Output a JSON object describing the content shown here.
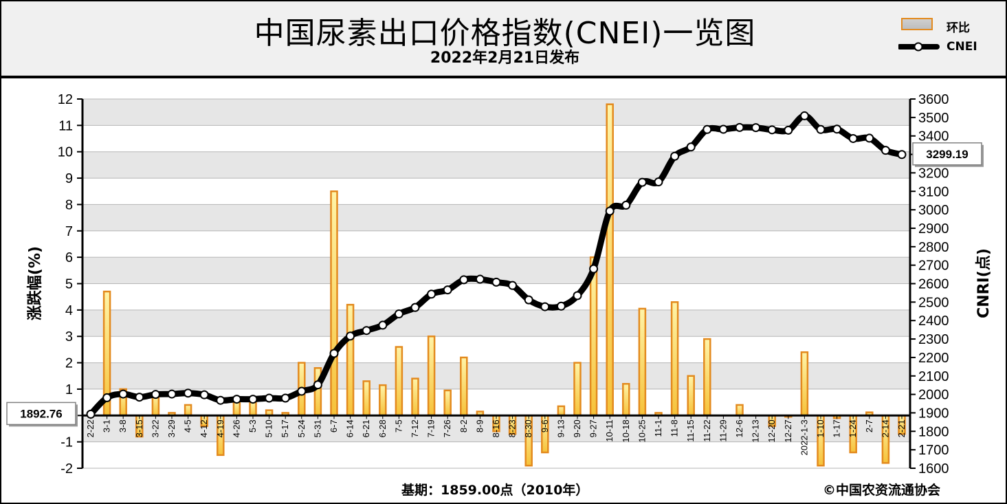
{
  "header": {
    "title": "中国尿素出口价格指数(CNEI)一览图",
    "subtitle": "2022年2月21日发布"
  },
  "legend": {
    "bar_label": "环比",
    "line_label": "CNEI"
  },
  "footer": {
    "base_period": "基期：1859.00点（2010年）",
    "copyright": "©中国农资流通协会"
  },
  "colors": {
    "bar_border": "#e38a1e",
    "bar_fill_top": "#fff4a8",
    "bar_fill_bottom": "#f6c23a",
    "line": "#000000",
    "marker_fill": "#ffffff",
    "grid_band": "#e6e6e6"
  },
  "chart_data": {
    "type": "bar+line",
    "title": "中国尿素出口价格指数(CNEI)一览图",
    "ylabel_left": "涨跌幅(%)",
    "ylabel_right": "CNRI(点)",
    "ylim_left": [
      -2,
      12
    ],
    "ylim_right": [
      1600,
      3600
    ],
    "yticks_left": [
      -2,
      -1,
      0,
      1,
      2,
      3,
      4,
      5,
      6,
      7,
      8,
      9,
      10,
      11,
      12
    ],
    "yticks_right": [
      1600,
      1700,
      1800,
      1900,
      2000,
      2100,
      2200,
      2300,
      2400,
      2500,
      2600,
      2700,
      2800,
      2900,
      3000,
      3100,
      3200,
      3300,
      3400,
      3500,
      3600
    ],
    "categories": [
      "2-22",
      "3-1",
      "3-8",
      "3-15",
      "3-22",
      "3-29",
      "4-5",
      "4-12",
      "4-19",
      "4-26",
      "5-3",
      "5-10",
      "5-17",
      "5-24",
      "5-31",
      "6-7",
      "6-14",
      "6-21",
      "6-28",
      "7-5",
      "7-12",
      "7-19",
      "7-26",
      "8-2",
      "8-9",
      "8-16",
      "8-23",
      "8-30",
      "9-6",
      "9-13",
      "9-20",
      "9-27",
      "10-11",
      "10-18",
      "10-25",
      "11-1",
      "11-8",
      "11-15",
      "11-22",
      "11-29",
      "12-6",
      "12-13",
      "12-20",
      "12-27",
      "2022-1-3",
      "1-10",
      "1-17",
      "1-24",
      "2-7",
      "2-14",
      "2-21"
    ],
    "series": [
      {
        "name": "环比",
        "kind": "bar",
        "axis": "left",
        "values": [
          0,
          4.7,
          1.0,
          -0.8,
          0.8,
          0.1,
          0.4,
          -0.4,
          -1.5,
          0.5,
          0.5,
          0.2,
          0.1,
          2.0,
          1.8,
          8.5,
          4.2,
          1.3,
          1.15,
          2.6,
          1.4,
          3.0,
          0.95,
          2.2,
          0.15,
          -0.6,
          -0.7,
          -1.9,
          -1.4,
          0.35,
          2.0,
          6.0,
          11.8,
          1.2,
          4.05,
          0.1,
          4.3,
          1.5,
          2.9,
          0.0,
          0.4,
          0.0,
          -0.4,
          -0.05,
          2.4,
          -1.9,
          -0.1,
          -1.4,
          0.12,
          -1.8,
          -0.7
        ]
      },
      {
        "name": "CNEI",
        "kind": "line",
        "axis": "right",
        "values": [
          1892.76,
          1982,
          2002,
          1985,
          2000,
          2002,
          2007,
          1998,
          1968,
          1974,
          1974,
          1980,
          1980,
          2017,
          2052,
          2222,
          2316,
          2346,
          2375,
          2436,
          2471,
          2543,
          2566,
          2621,
          2624,
          2608,
          2590,
          2512,
          2475,
          2478,
          2535,
          2680,
          2993,
          3025,
          3149,
          3151,
          3290,
          3340,
          3435,
          3436,
          3446,
          3445,
          3433,
          3431,
          3509,
          3435,
          3437,
          3386,
          3388,
          3322,
          3299.19
        ]
      }
    ],
    "annotations": [
      "1892.76",
      "3299.19"
    ]
  }
}
